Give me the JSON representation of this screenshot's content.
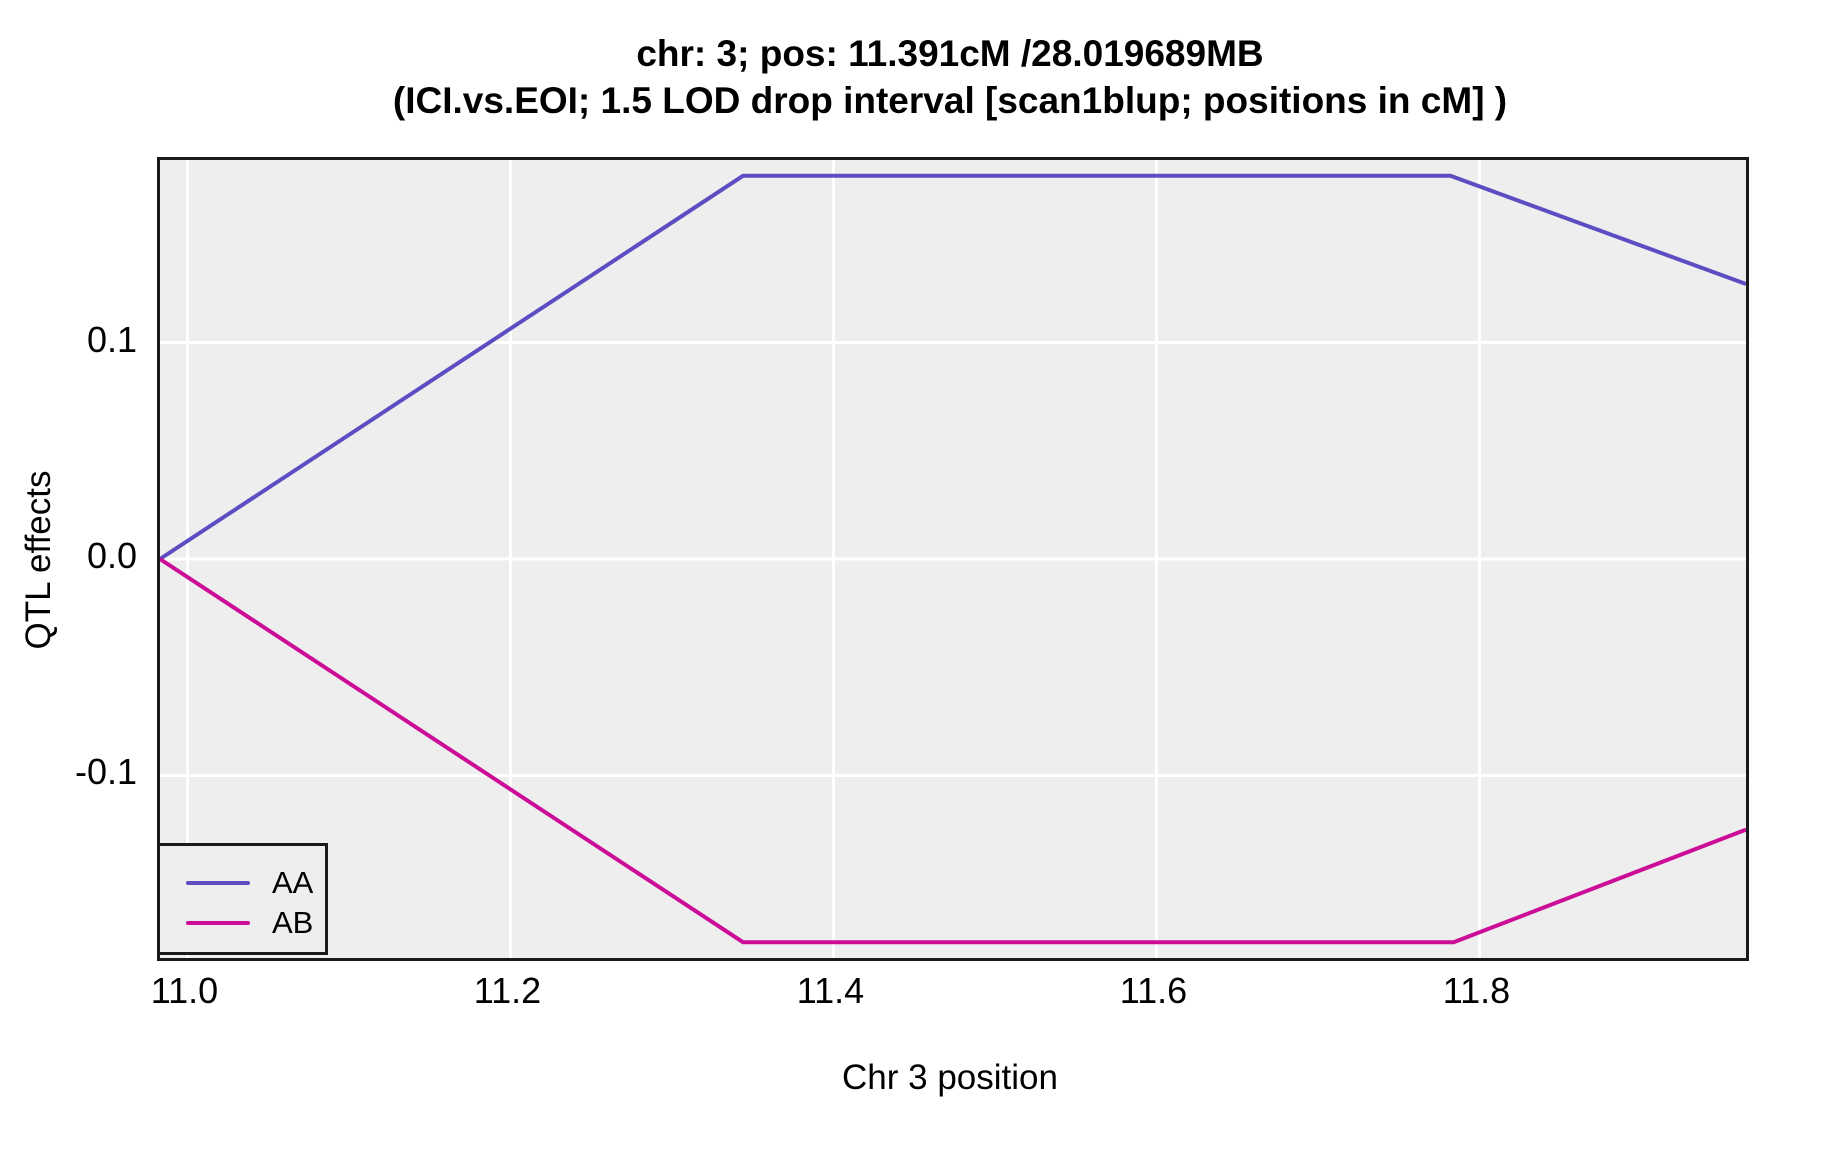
{
  "title": {
    "line1": "chr: 3; pos: 11.391cM /28.019689MB",
    "line2": "(ICI.vs.EOI; 1.5 LOD drop interval [scan1blup; positions in cM] )"
  },
  "axes": {
    "x_label": "Chr 3 position",
    "y_label": "QTL effects"
  },
  "legend": {
    "position": "bottom-left",
    "items": [
      {
        "label": "AA",
        "color": "#5c4ec2"
      },
      {
        "label": "AB",
        "color": "#cb0d98"
      }
    ]
  },
  "colors": {
    "panel_background": "#eeeeee",
    "panel_border": "#1a1a1a",
    "gridline": "#ffffff",
    "series_AA": "#5c4ec2",
    "series_AB": "#cb0d98",
    "text": "#000000"
  },
  "chart_data": {
    "type": "line",
    "title": "chr: 3; pos: 11.391cM /28.019689MB (ICI.vs.EOI; 1.5 LOD drop interval [scan1blup; positions in cM] )",
    "xlabel": "Chr 3 position",
    "ylabel": "QTL effects",
    "xlim": [
      10.983,
      11.965
    ],
    "ylim": [
      -0.1843,
      0.1843
    ],
    "grid": "major white gridlines on gray panel, no tick marks",
    "legend_position": "bottom-left",
    "x_ticks": {
      "values": [
        11.0,
        11.2,
        11.4,
        11.6,
        11.8
      ],
      "labels": [
        "11.0",
        "11.2",
        "11.4",
        "11.6",
        "11.8"
      ]
    },
    "y_ticks": {
      "values": [
        0.1,
        0.0,
        -0.1
      ],
      "labels": [
        "0.1",
        "0.0",
        "-0.1"
      ]
    },
    "series": [
      {
        "name": "AA",
        "color": "#5c4ec2",
        "x": [
          10.983,
          11.344,
          11.782,
          11.965
        ],
        "y": [
          0.0,
          0.177,
          0.177,
          0.127
        ]
      },
      {
        "name": "AB",
        "color": "#cb0d98",
        "x": [
          10.983,
          11.344,
          11.784,
          11.965
        ],
        "y": [
          0.0,
          -0.177,
          -0.177,
          -0.125
        ]
      }
    ]
  }
}
